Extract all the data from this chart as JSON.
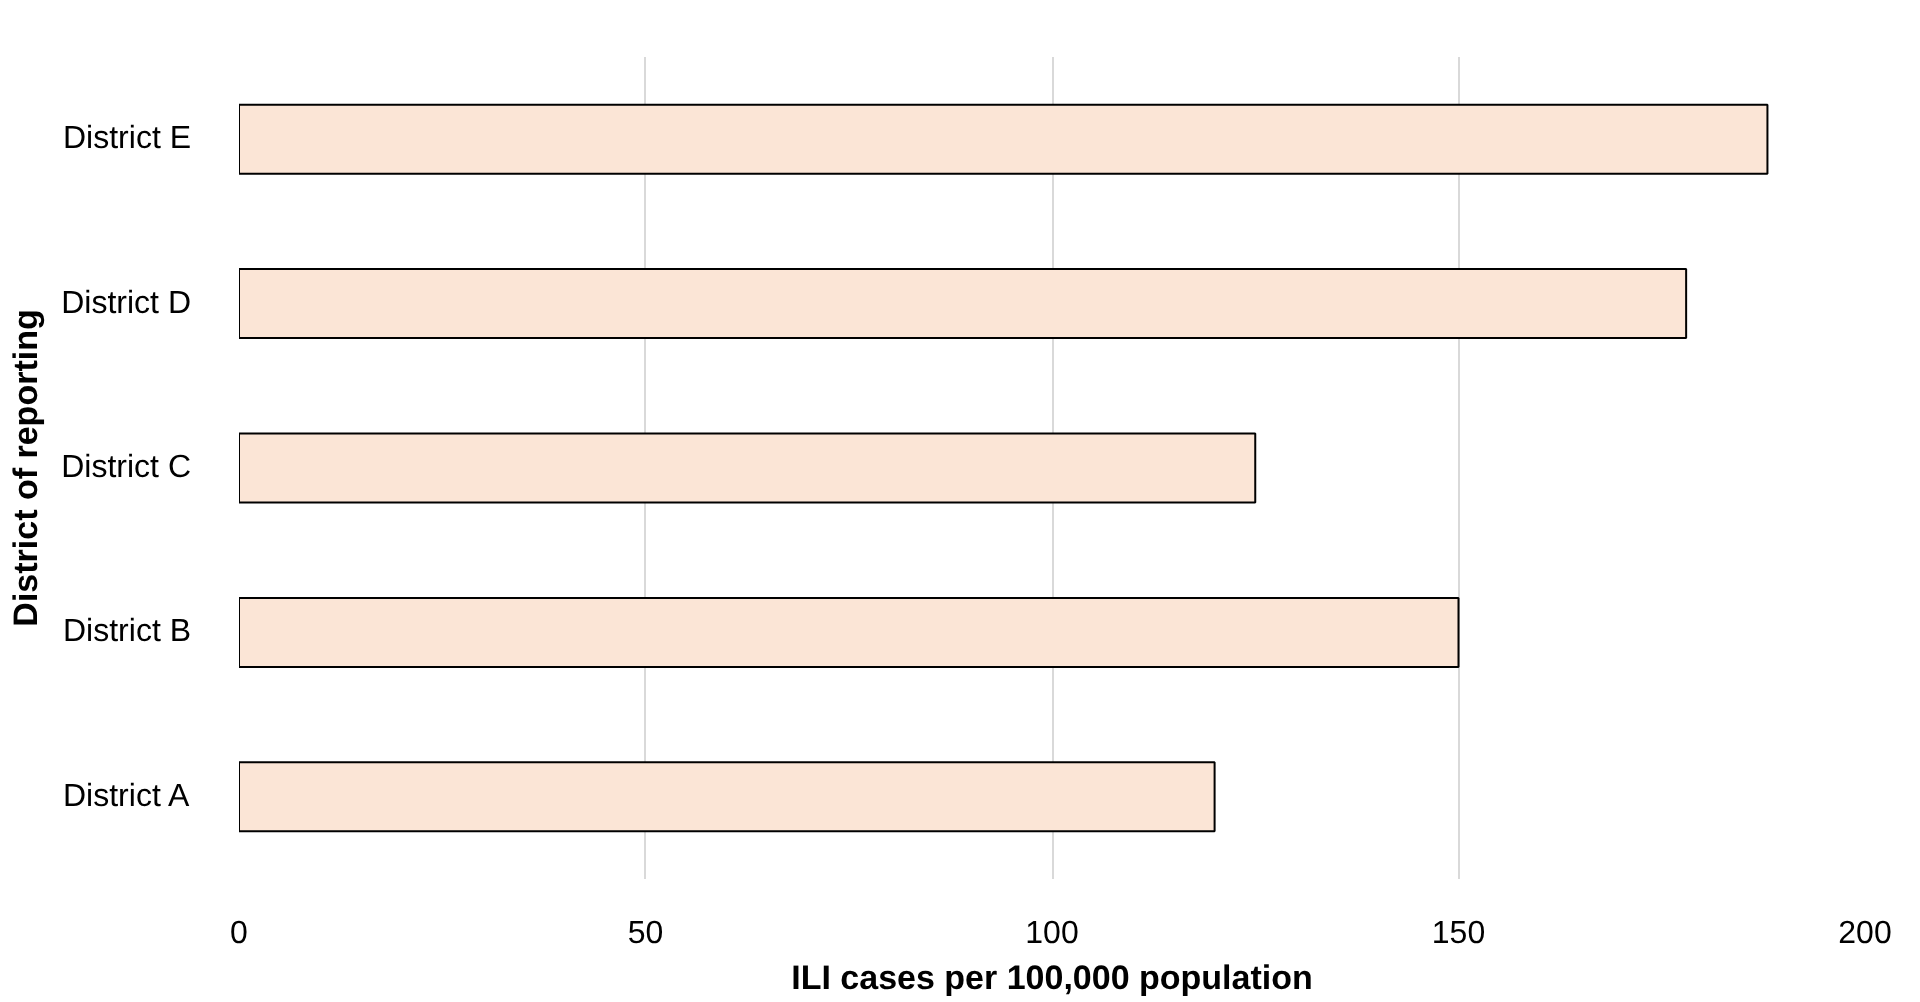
{
  "chart_data": {
    "type": "bar",
    "orientation": "horizontal",
    "xlabel": "ILI cases per 100,000 population",
    "ylabel": "District of reporting",
    "categories": [
      "District E",
      "District D",
      "District C",
      "District B",
      "District A"
    ],
    "values": [
      188,
      178,
      125,
      150,
      120
    ],
    "color": "#fbe5d6",
    "xlim": [
      0,
      200
    ],
    "xticks": [
      0,
      50,
      100,
      150,
      200
    ],
    "grid": "x"
  }
}
